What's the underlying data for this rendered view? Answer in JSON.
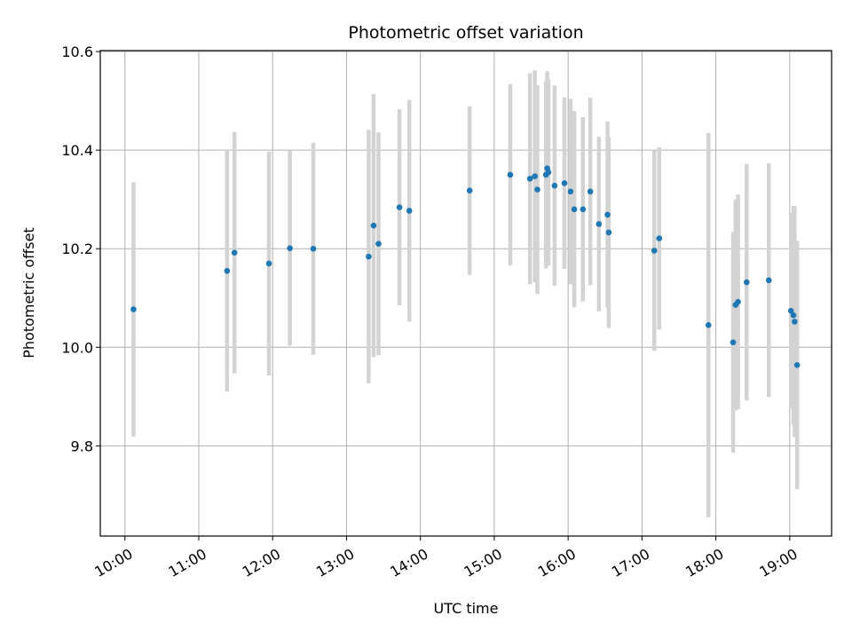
{
  "chart_data": {
    "type": "scatter",
    "title": "Photometric offset variation",
    "xlabel": "UTC time",
    "ylabel": "Photometric offset",
    "xlim": [
      "09:40",
      "19:34"
    ],
    "ylim": [
      9.617,
      10.602
    ],
    "grid": true,
    "x_ticks": [
      "10:00",
      "11:00",
      "12:00",
      "13:00",
      "14:00",
      "15:00",
      "16:00",
      "17:00",
      "18:00",
      "19:00"
    ],
    "y_ticks": [
      "9.8",
      "10.0",
      "10.2",
      "10.4",
      "10.6"
    ],
    "colors": {
      "point": "#1f77b4",
      "error_bar": "#d3d3d3",
      "grid": "#b0b0b0"
    },
    "series": [
      {
        "x": [
          "10:07",
          "11:23",
          "11:29",
          "11:57",
          "12:14",
          "12:33",
          "13:18",
          "13:22",
          "13:26",
          "13:43",
          "13:51",
          "14:40",
          "15:13",
          "15:29",
          "15:33",
          "15:35",
          "15:42",
          "15:43",
          "15:44",
          "15:49",
          "15:57",
          "16:02",
          "16:05",
          "16:12",
          "16:18",
          "16:25",
          "16:32",
          "16:33",
          "17:10",
          "17:14",
          "17:54",
          "18:14",
          "18:16",
          "18:18",
          "18:25",
          "18:43",
          "19:01",
          "19:03",
          "19:04",
          "19:06"
        ],
        "y": [
          10.077,
          10.155,
          10.192,
          10.17,
          10.201,
          10.2,
          10.184,
          10.247,
          10.21,
          10.284,
          10.277,
          10.318,
          10.35,
          10.342,
          10.347,
          10.32,
          10.35,
          10.363,
          10.355,
          10.328,
          10.333,
          10.316,
          10.28,
          10.28,
          10.316,
          10.25,
          10.269,
          10.233,
          10.196,
          10.221,
          10.045,
          10.01,
          10.086,
          10.092,
          10.132,
          10.136,
          10.074,
          10.065,
          10.052,
          9.964
        ],
        "yerr": [
          0.258,
          0.245,
          0.245,
          0.227,
          0.198,
          0.215,
          0.257,
          0.267,
          0.226,
          0.199,
          0.225,
          0.171,
          0.184,
          0.214,
          0.215,
          0.212,
          0.19,
          0.197,
          0.189,
          0.203,
          0.174,
          0.188,
          0.199,
          0.187,
          0.19,
          0.177,
          0.189,
          0.194,
          0.203,
          0.185,
          0.39,
          0.224,
          0.214,
          0.218,
          0.24,
          0.237,
          0.198,
          0.222,
          0.234,
          0.252
        ]
      }
    ]
  }
}
